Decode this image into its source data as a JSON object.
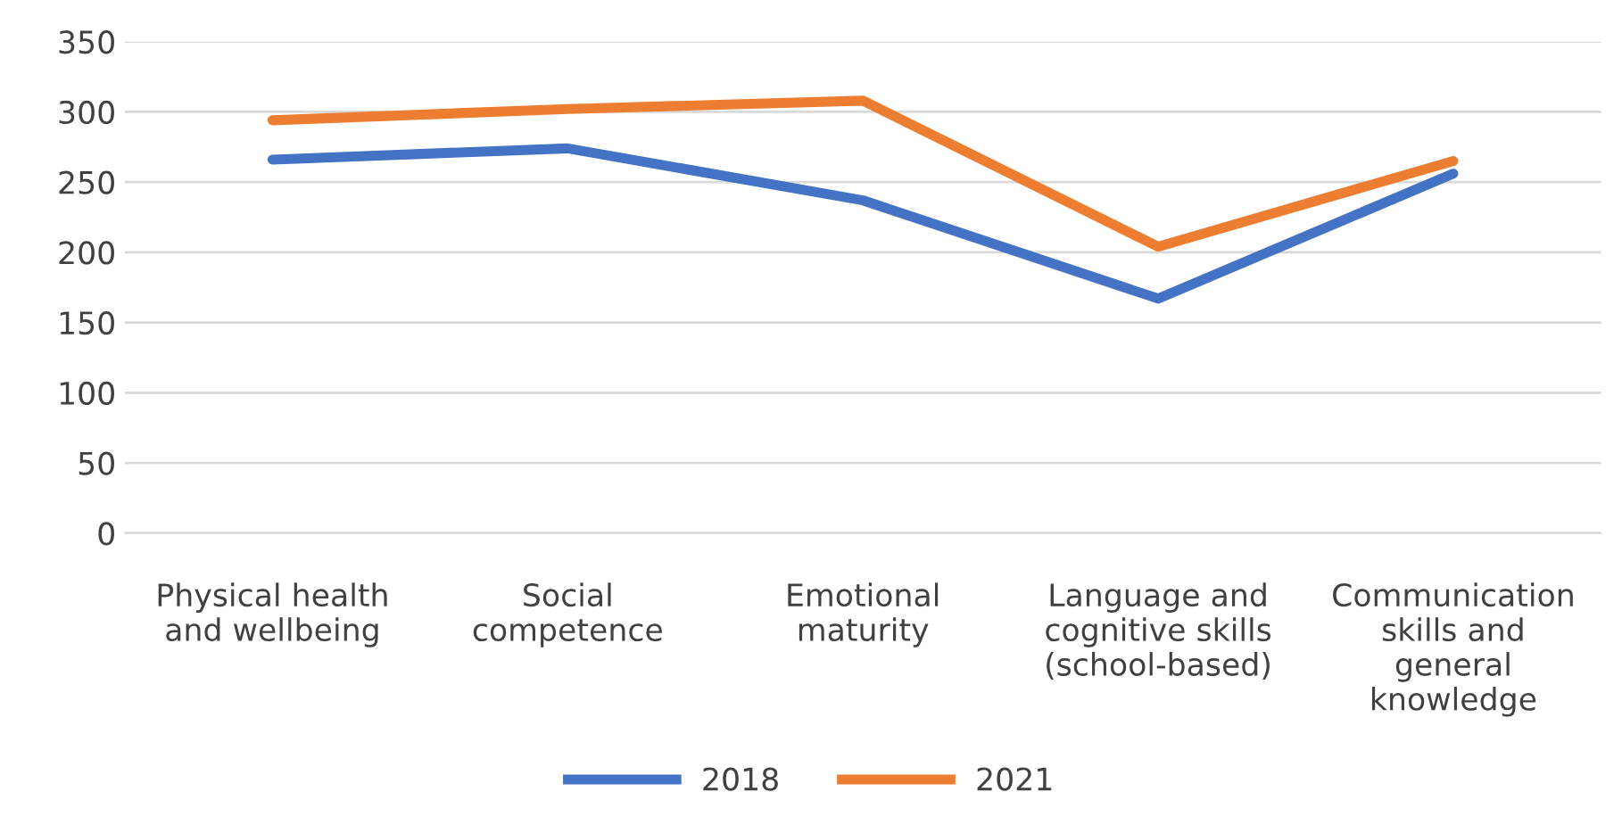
{
  "chart_data": {
    "type": "line",
    "categories": [
      "Physical health\nand wellbeing",
      "Social\ncompetence",
      "Emotional\nmaturity",
      "Language and\ncognitive skills\n(school-based)",
      "Communication\nskills and\ngeneral\nknowledge"
    ],
    "series": [
      {
        "name": "2018",
        "color": "#4472c4",
        "values": [
          266,
          274,
          237,
          167,
          256
        ]
      },
      {
        "name": "2021",
        "color": "#ed7d31",
        "values": [
          294,
          302,
          308,
          204,
          265
        ]
      }
    ],
    "ylim": [
      0,
      350
    ],
    "yticks": [
      0,
      50,
      100,
      150,
      200,
      250,
      300,
      350
    ],
    "grid": "y",
    "legend": "bottom",
    "marker": "none",
    "line_style": "solid"
  }
}
